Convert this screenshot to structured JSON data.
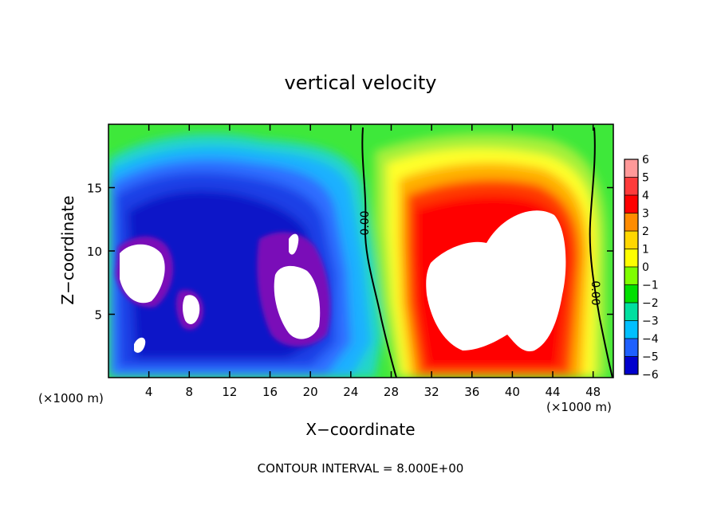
{
  "chart_data": {
    "type": "heatmap",
    "title": "vertical velocity",
    "xlabel": "X−coordinate",
    "ylabel": "Z−coordinate",
    "x_units_left": "(×1000 m)",
    "x_units_right": "(×1000 m)",
    "xlim": [
      0,
      50
    ],
    "ylim": [
      0,
      20
    ],
    "x_ticks": [
      4,
      8,
      12,
      16,
      20,
      24,
      28,
      32,
      36,
      40,
      44,
      48
    ],
    "y_ticks": [
      5,
      10,
      15
    ],
    "x_tick_labels": [
      "4",
      "8",
      "12",
      "16",
      "20",
      "24",
      "28",
      "32",
      "36",
      "40",
      "44",
      "48"
    ],
    "y_tick_labels": [
      "5",
      "10",
      "15"
    ],
    "colorbar": {
      "levels": [
        6,
        5,
        4,
        3,
        2,
        1,
        0,
        -1,
        -2,
        -3,
        -4,
        -5,
        -6
      ],
      "labels": [
        "6",
        "5",
        "4",
        "3",
        "2",
        "1",
        "0",
        "−1",
        "−2",
        "−3",
        "−4",
        "−5",
        "−6"
      ],
      "colors": [
        "#ff9999",
        "#ff3b3b",
        "#ff0000",
        "#ff8c00",
        "#ffd700",
        "#ffff00",
        "#7fff00",
        "#00e000",
        "#00e0a0",
        "#00bfff",
        "#1e60ff",
        "#0000cd",
        "#8b00b0"
      ]
    },
    "contour_label": "0.00",
    "contour_interval_text": "CONTOUR INTERVAL = 8.000E+00",
    "features": [
      {
        "sign": "negative",
        "x": [
          1,
          27
        ],
        "z": [
          1,
          17
        ],
        "extreme_below": -6
      },
      {
        "sign": "positive",
        "x": [
          29,
          47
        ],
        "z": [
          0.5,
          18
        ],
        "extreme_above": 6
      }
    ]
  }
}
